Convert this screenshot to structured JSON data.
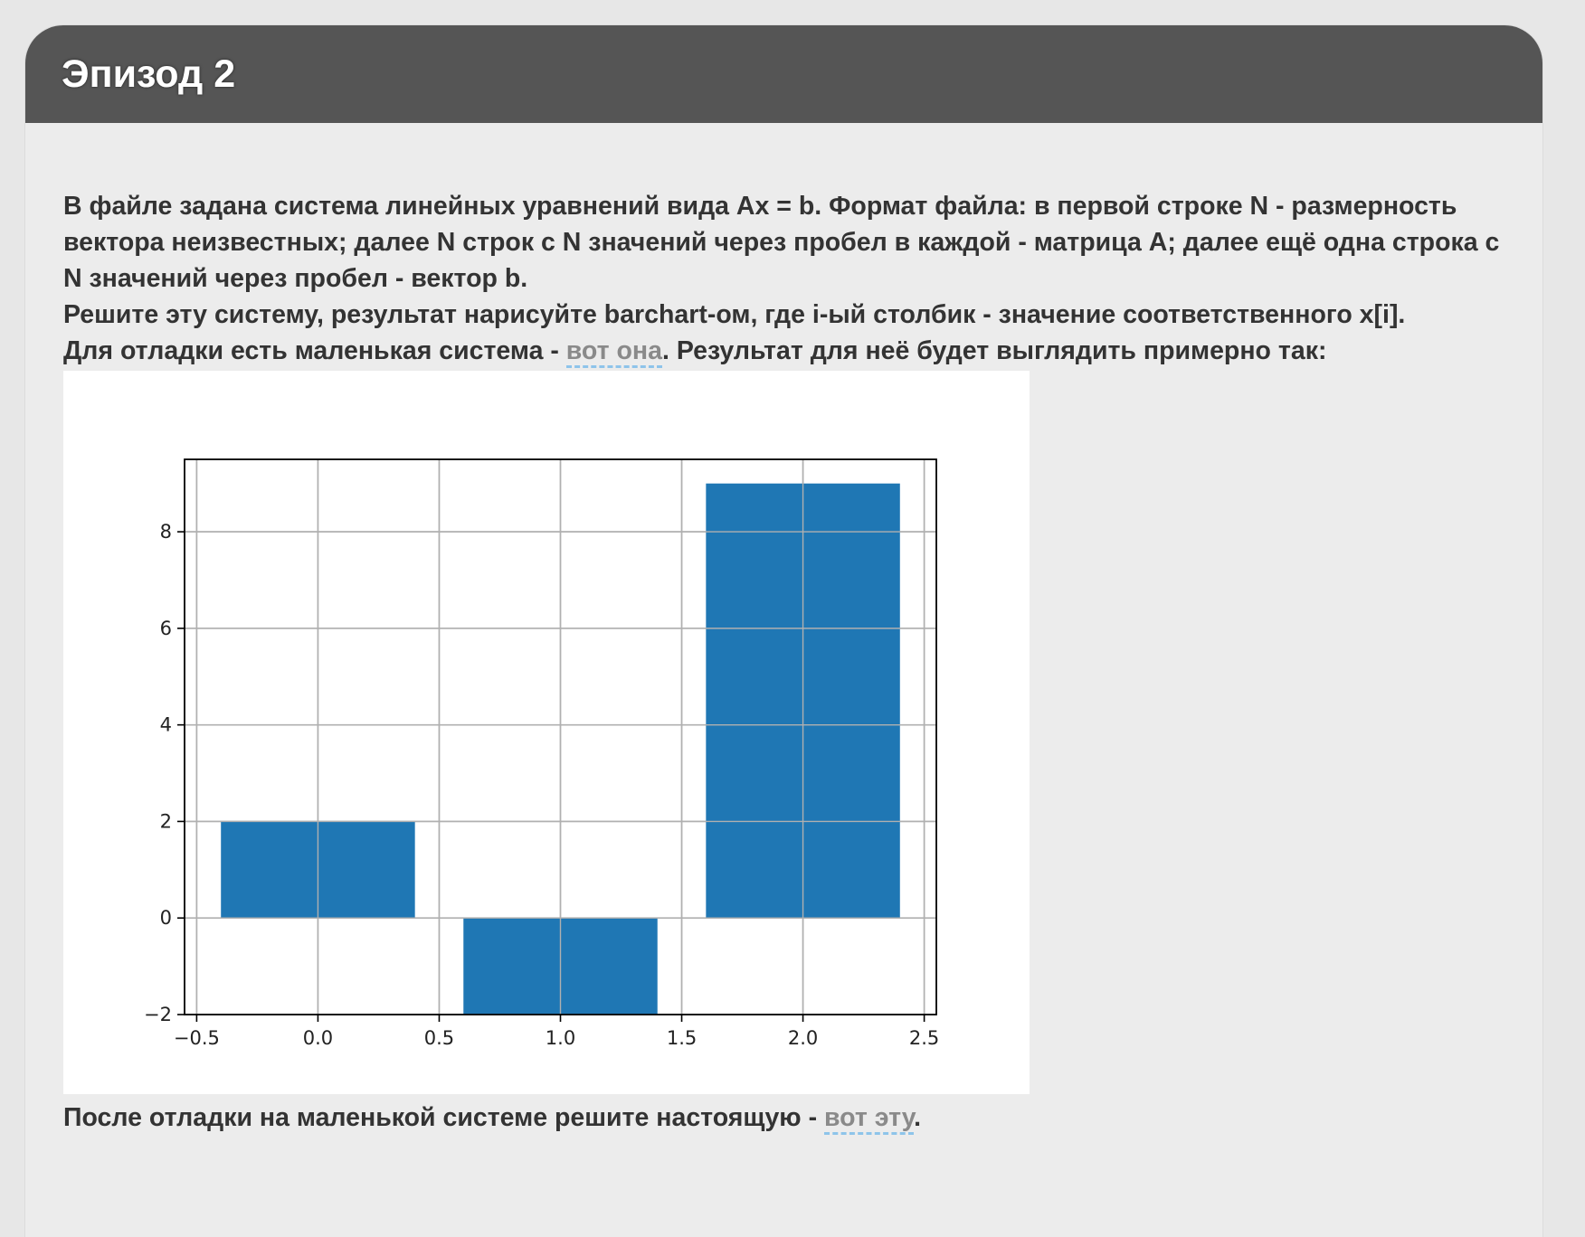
{
  "header": {
    "title": "Эпизод 2"
  },
  "task": {
    "line1": "В файле задана система линейных уравнений вида Ax = b. Формат файла: в первой строке N - размерность вектора неизвестных; далее N строк с N значений через пробел в каждой - матрица A; далее ещё одна строка с N значений через пробел - вектор b.",
    "line2": "Решите эту систему, результат нарисуйте barchart-ом, где i-ый столбик - значение соответственного x[i].",
    "debug_prefix": "Для отладки есть маленькая система - ",
    "debug_link": "вот она",
    "debug_suffix": ". Результат для неё будет выглядить примерно так:",
    "final_prefix": "После отладки на маленькой системе решите настоящую - ",
    "final_link": "вот эту",
    "final_suffix": "."
  },
  "colors": {
    "bar": "#1f77b4",
    "link": "#8a8a8a",
    "link_underline": "#8ec4ea",
    "header": "#555555"
  },
  "chart_data": {
    "type": "bar",
    "x": [
      0,
      1,
      2
    ],
    "values": [
      2,
      -2.2,
      9
    ],
    "bar_width": 0.8,
    "xlim": [
      -0.55,
      2.55
    ],
    "ylim": [
      -2,
      9.5
    ],
    "xticks": [
      -0.5,
      0.0,
      0.5,
      1.0,
      1.5,
      2.0,
      2.5
    ],
    "xtick_labels": [
      "−0.5",
      "0.0",
      "0.5",
      "1.0",
      "1.5",
      "2.0",
      "2.5"
    ],
    "yticks": [
      -2,
      0,
      2,
      4,
      6,
      8
    ],
    "ytick_labels": [
      "−2",
      "0",
      "2",
      "4",
      "6",
      "8"
    ],
    "grid": true
  }
}
